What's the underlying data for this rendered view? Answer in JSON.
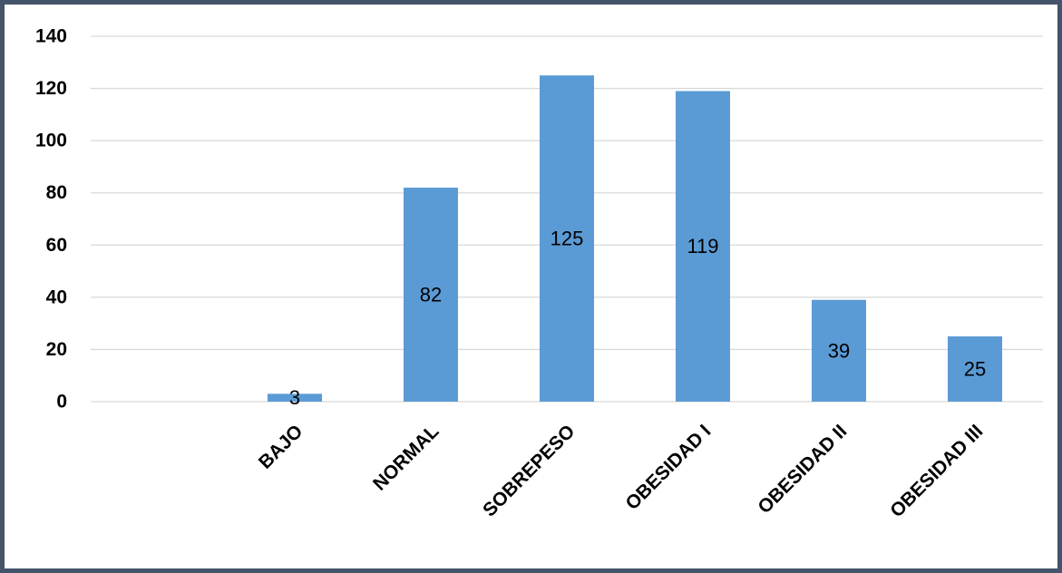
{
  "chart_data": {
    "type": "bar",
    "categories": [
      "",
      "BAJO",
      "NORMAL",
      "SOBREPESO",
      "OBESIDAD I",
      "OBESIDAD II",
      "OBESIDAD III"
    ],
    "values": [
      null,
      3,
      82,
      125,
      119,
      39,
      25
    ],
    "data_labels": [
      "",
      "3",
      "82",
      "125",
      "119",
      "39",
      "25"
    ],
    "title": "",
    "xlabel": "",
    "ylabel": "",
    "ylim": [
      0,
      140
    ],
    "yticks": [
      0,
      20,
      40,
      60,
      80,
      100,
      120,
      140
    ],
    "grid": true,
    "legend": "none",
    "colors": {
      "bar": "#5b9bd5",
      "grid": "#d9d9d9",
      "border": "#44546a"
    }
  }
}
